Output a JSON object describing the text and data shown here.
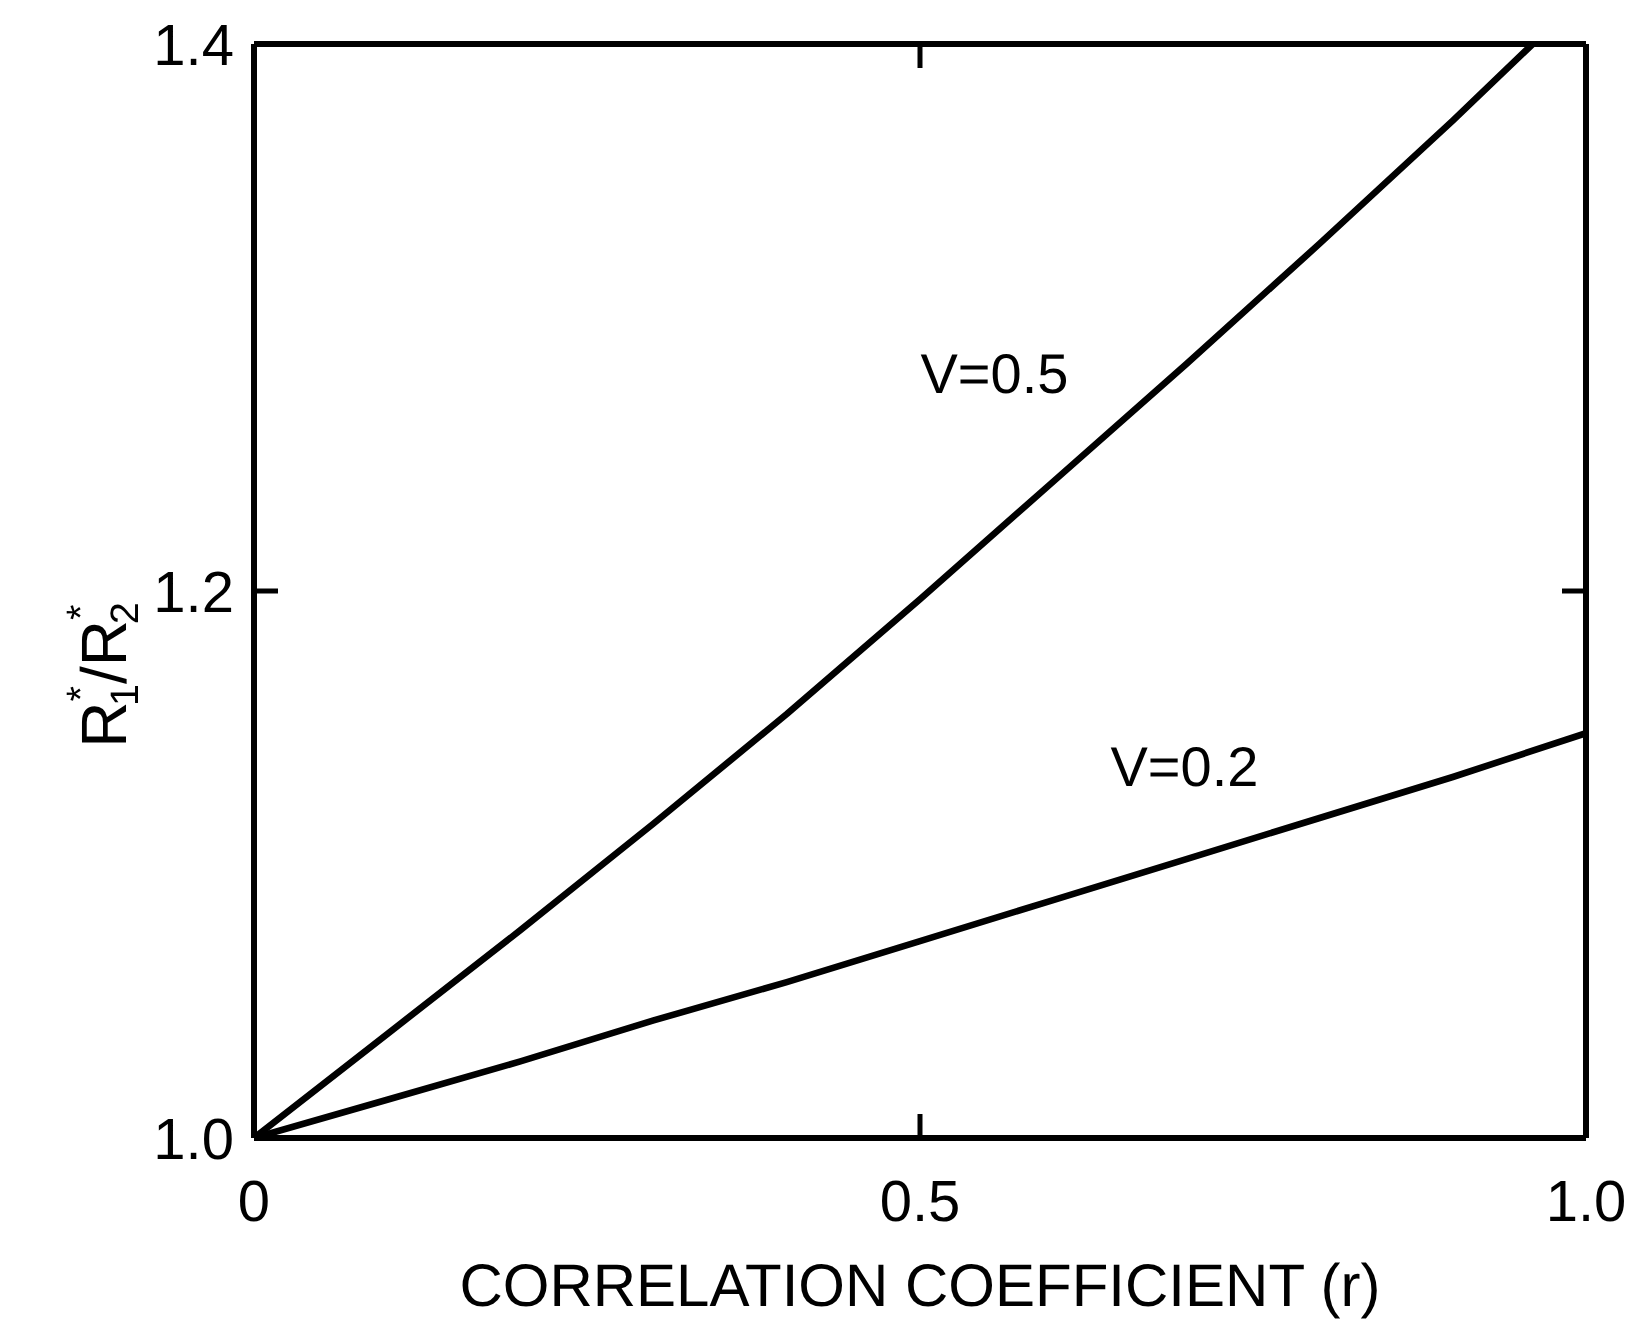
{
  "chart_data": {
    "type": "line",
    "xlabel": "CORRELATION COEFFICIENT (r)",
    "ylabel": "R$^{*}$$_{1}$/R$^{*}$$_{2}$",
    "xlim": [
      0,
      1
    ],
    "xticks": [
      0,
      0.5,
      {
        "value": 1,
        "label": "1.0"
      }
    ],
    "ylim": [
      1,
      1.4
    ],
    "yticks": [
      {
        "value": 1,
        "label": "1.0"
      },
      1.2,
      1.4
    ],
    "series": [
      {
        "name": "V=0.5",
        "color": "#000000",
        "x": [
          0,
          0.1,
          0.2,
          0.3,
          0.4,
          0.5,
          0.6,
          0.7,
          0.8,
          0.9,
          0.96
        ],
        "values": [
          1.0,
          1.038,
          1.076,
          1.115,
          1.155,
          1.197,
          1.24,
          1.283,
          1.327,
          1.372,
          1.4
        ]
      },
      {
        "name": "V=0.2",
        "color": "#000000",
        "x": [
          0,
          0.1,
          0.2,
          0.3,
          0.4,
          0.5,
          0.6,
          0.7,
          0.8,
          0.9,
          1.0
        ],
        "values": [
          1.0,
          1.014,
          1.028,
          1.043,
          1.057,
          1.072,
          1.087,
          1.102,
          1.117,
          1.132,
          1.148
        ]
      }
    ]
  }
}
